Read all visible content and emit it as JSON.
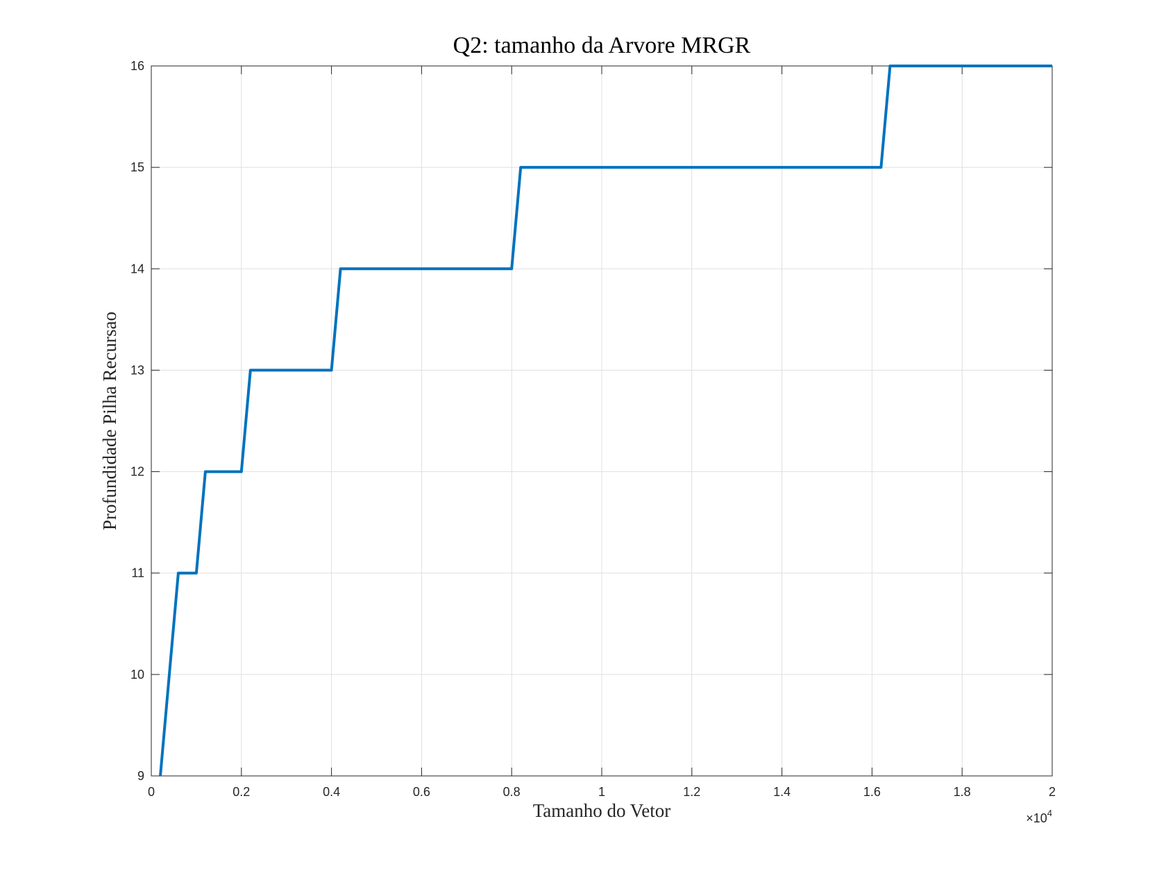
{
  "chart_data": {
    "type": "line",
    "title": "Q2: tamanho da Arvore MRGR",
    "xlabel": "Tamanho do Vetor",
    "ylabel": "Profundidade Pilha Recursao",
    "x_exponent": {
      "base": "×10",
      "power": "4"
    },
    "xlim": [
      0,
      2
    ],
    "ylim": [
      9,
      16
    ],
    "x_ticks": [
      0,
      0.2,
      0.4,
      0.6,
      0.8,
      1,
      1.2,
      1.4,
      1.6,
      1.8,
      2
    ],
    "x_tick_labels": [
      "0",
      "0.2",
      "0.4",
      "0.6",
      "0.8",
      "1",
      "1.2",
      "1.4",
      "1.6",
      "1.8",
      "2"
    ],
    "y_ticks": [
      9,
      10,
      11,
      12,
      13,
      14,
      15,
      16
    ],
    "y_tick_labels": [
      "9",
      "10",
      "11",
      "12",
      "13",
      "14",
      "15",
      "16"
    ],
    "grid": true,
    "series": [
      {
        "color": "#0072BD",
        "x": [
          0.02,
          0.06,
          0.1,
          0.12,
          0.2,
          0.22,
          0.4,
          0.42,
          0.8,
          0.82,
          1.62,
          1.64,
          2.0
        ],
        "y": [
          9,
          11,
          11,
          12,
          12,
          13,
          13,
          14,
          14,
          15,
          15,
          16,
          16
        ]
      }
    ]
  }
}
